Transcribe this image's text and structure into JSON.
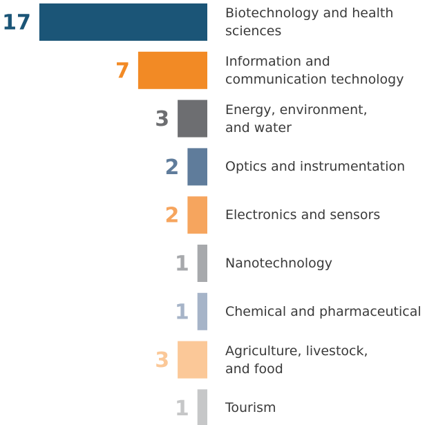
{
  "chart_data": {
    "type": "bar",
    "orientation": "horizontal",
    "categories": [
      "Biotechnology and health\nsciences",
      "Information and\ncommunication technology",
      "Energy, environment,\nand water",
      "Optics and instrumentation",
      "Electronics and sensors",
      "Nanotechnology",
      "Chemical and pharmaceutical",
      "Agriculture, livestock,\nand food",
      "Tourism"
    ],
    "values": [
      17,
      7,
      3,
      2,
      2,
      1,
      1,
      3,
      1
    ],
    "colors": [
      "#1b5577",
      "#f28a25",
      "#6d6e71",
      "#5f7c9b",
      "#f6a55e",
      "#a7a9ac",
      "#a6b4c8",
      "#fbc898",
      "#c6c7c8"
    ]
  }
}
